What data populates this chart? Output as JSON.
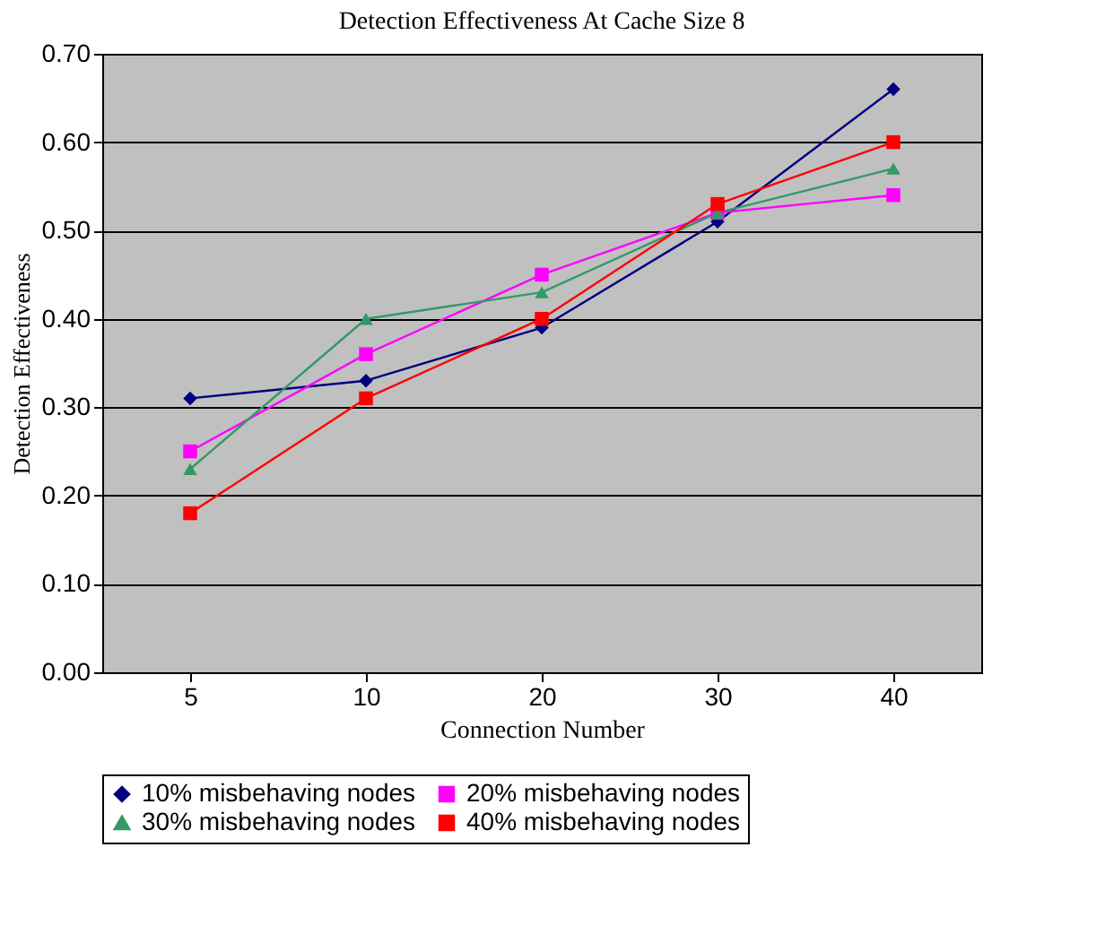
{
  "chart_data": {
    "type": "line",
    "title": "Detection Effectiveness At Cache Size 8",
    "xlabel": "Connection Number",
    "ylabel": "Detection Effectiveness",
    "categories": [
      "5",
      "10",
      "20",
      "30",
      "40"
    ],
    "series": [
      {
        "name": "10% misbehaving nodes",
        "color": "#000080",
        "marker": "diamond",
        "values": [
          0.31,
          0.33,
          0.39,
          0.51,
          0.66
        ]
      },
      {
        "name": "20% misbehaving nodes",
        "color": "#ff00ff",
        "marker": "square",
        "values": [
          0.25,
          0.36,
          0.45,
          0.52,
          0.54
        ]
      },
      {
        "name": "30% misbehaving nodes",
        "color": "#339966",
        "marker": "triangle",
        "values": [
          0.23,
          0.4,
          0.43,
          0.52,
          0.57
        ]
      },
      {
        "name": "40% misbehaving nodes",
        "color": "#ff0000",
        "marker": "square",
        "values": [
          0.18,
          0.31,
          0.4,
          0.53,
          0.6
        ]
      }
    ],
    "ylim": [
      0,
      0.7
    ],
    "yticks": [
      {
        "value": 0,
        "label": "0.00"
      },
      {
        "value": 0.1,
        "label": "0.10"
      },
      {
        "value": 0.2,
        "label": "0.20"
      },
      {
        "value": 0.3,
        "label": "0.30"
      },
      {
        "value": 0.4,
        "label": "0.40"
      },
      {
        "value": 0.5,
        "label": "0.50"
      },
      {
        "value": 0.6,
        "label": "0.60"
      },
      {
        "value": 0.7,
        "label": "0.70"
      }
    ],
    "grid": "y",
    "legend": "bottom",
    "line_style": "solid"
  }
}
